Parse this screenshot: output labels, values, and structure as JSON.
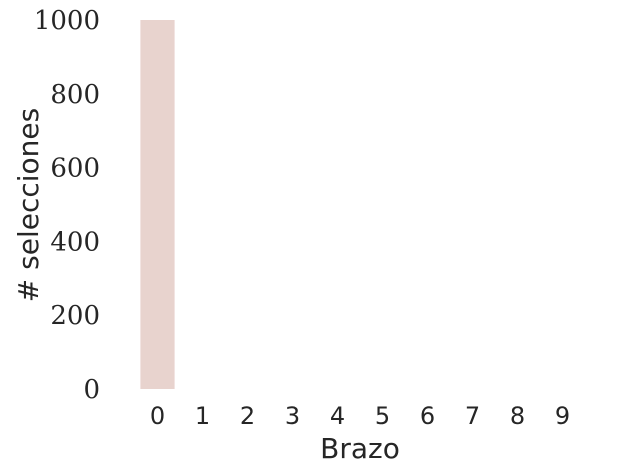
{
  "chart_data": {
    "type": "bar",
    "categories": [
      "0",
      "1",
      "2",
      "3",
      "4",
      "5",
      "6",
      "7",
      "8",
      "9"
    ],
    "values": [
      1000,
      0,
      0,
      0,
      0,
      0,
      0,
      0,
      0,
      0
    ],
    "xlabel": "Brazo",
    "ylabel": "# selecciones",
    "ylim": [
      0,
      1000
    ],
    "yticks": [
      "0",
      "200",
      "400",
      "600",
      "800",
      "1000"
    ],
    "grid": false,
    "bar_color": "#e8d3ce"
  }
}
